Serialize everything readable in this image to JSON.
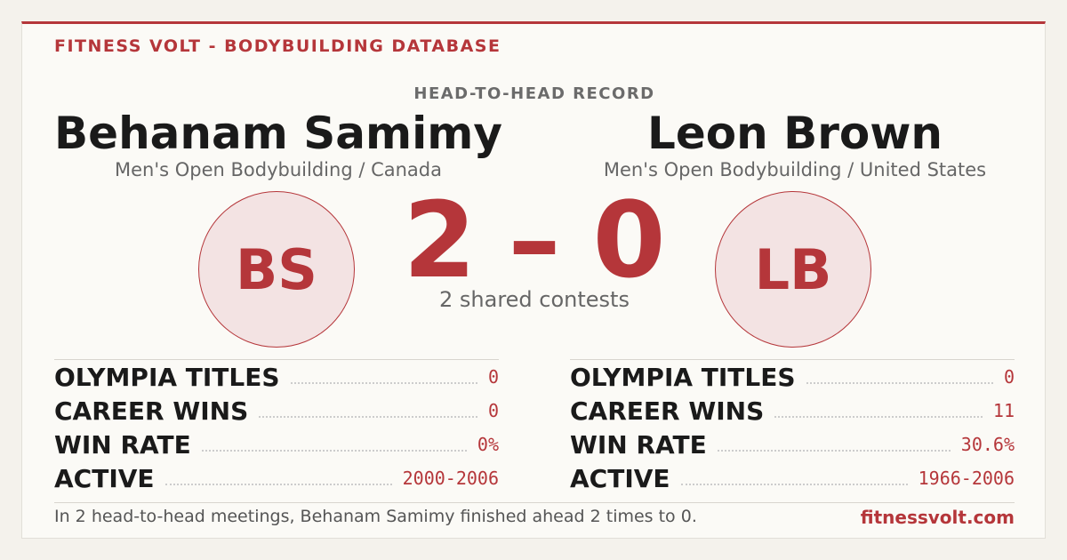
{
  "header": {
    "brand": "FITNESS VOLT - BODYBUILDING DATABASE",
    "section": "HEAD-TO-HEAD RECORD"
  },
  "athletes": [
    {
      "name": "Behanam Samimy",
      "subtitle": "Men's Open Bodybuilding / Canada",
      "initials": "BS",
      "stats": [
        {
          "label": "OLYMPIA TITLES",
          "value": "0"
        },
        {
          "label": "CAREER WINS",
          "value": "0"
        },
        {
          "label": "WIN RATE",
          "value": "0%"
        },
        {
          "label": "ACTIVE",
          "value": "2000-2006"
        }
      ]
    },
    {
      "name": "Leon Brown",
      "subtitle": "Men's Open Bodybuilding / United States",
      "initials": "LB",
      "stats": [
        {
          "label": "OLYMPIA TITLES",
          "value": "0"
        },
        {
          "label": "CAREER WINS",
          "value": "11"
        },
        {
          "label": "WIN RATE",
          "value": "30.6%"
        },
        {
          "label": "ACTIVE",
          "value": "1966-2006"
        }
      ]
    }
  ],
  "score": {
    "left": "2",
    "separator": "–",
    "right": "0",
    "caption": "2 shared contests"
  },
  "footer": {
    "summary": "In 2 head-to-head meetings, Behanam Samimy finished ahead 2 times to 0.",
    "site": "fitnessvolt.com"
  }
}
